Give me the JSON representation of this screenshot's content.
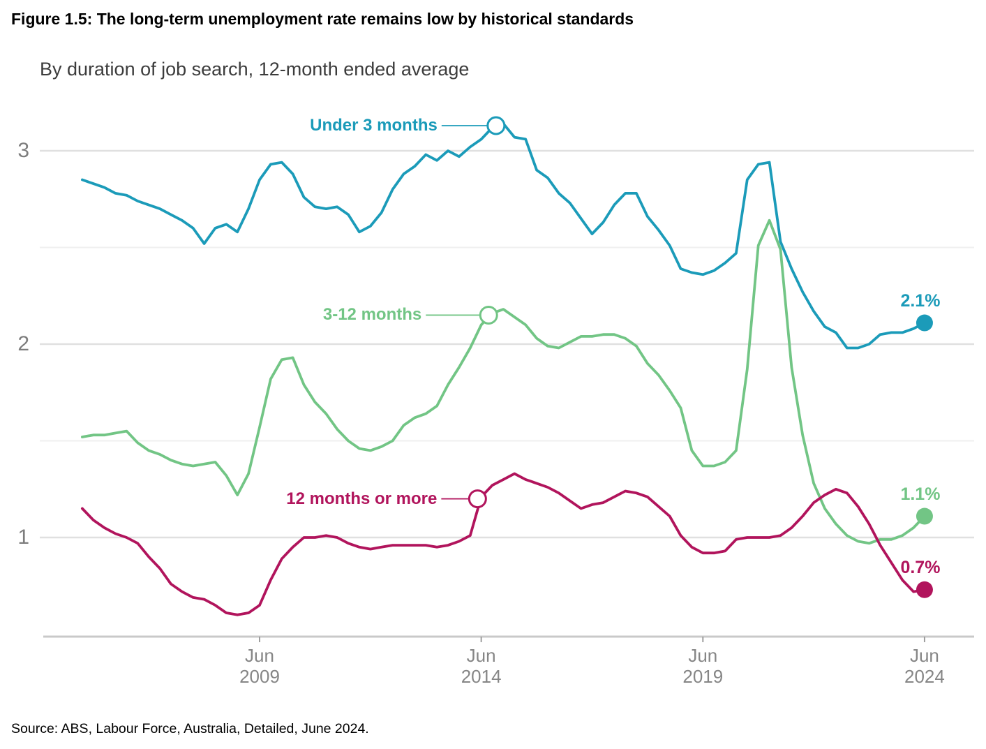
{
  "figure": {
    "title": "Figure 1.5: The long-term unemployment rate remains low by historical standards",
    "subtitle": "By duration of job search, 12-month ended average",
    "source": "Source: ABS, Labour Force, Australia, Detailed, June 2024."
  },
  "chart_data": {
    "type": "line",
    "title": "Figure 1.5: The long-term unemployment rate remains low by historical standards",
    "subtitle": "By duration of job search, 12-month ended average",
    "xlabel": "",
    "ylabel": "",
    "unit": "per cent",
    "grid": "horizontal",
    "legend_position": "inline-callouts",
    "ylim": [
      0.45,
      3.2
    ],
    "y_ticks": [
      {
        "label": "1",
        "value": 1
      },
      {
        "label": "2",
        "value": 2
      },
      {
        "label": "3",
        "value": 3
      }
    ],
    "y_gridlines": [
      1,
      1.5,
      2,
      2.5,
      3
    ],
    "x_ticks": [
      {
        "label_month": "Jun",
        "label_year": "2009",
        "date": "2009-06"
      },
      {
        "label_month": "Jun",
        "label_year": "2014",
        "date": "2014-06"
      },
      {
        "label_month": "Jun",
        "label_year": "2019",
        "date": "2019-06"
      },
      {
        "label_month": "Jun",
        "label_year": "2024",
        "date": "2024-06"
      }
    ],
    "x": [
      "2005-06",
      "2005-09",
      "2005-12",
      "2006-03",
      "2006-06",
      "2006-09",
      "2006-12",
      "2007-03",
      "2007-06",
      "2007-09",
      "2007-12",
      "2008-03",
      "2008-06",
      "2008-09",
      "2008-12",
      "2009-03",
      "2009-06",
      "2009-09",
      "2009-12",
      "2010-03",
      "2010-06",
      "2010-09",
      "2010-12",
      "2011-03",
      "2011-06",
      "2011-09",
      "2011-12",
      "2012-03",
      "2012-06",
      "2012-09",
      "2012-12",
      "2013-03",
      "2013-06",
      "2013-09",
      "2013-12",
      "2014-03",
      "2014-06",
      "2014-09",
      "2014-12",
      "2015-03",
      "2015-06",
      "2015-09",
      "2015-12",
      "2016-03",
      "2016-06",
      "2016-09",
      "2016-12",
      "2017-03",
      "2017-06",
      "2017-09",
      "2017-12",
      "2018-03",
      "2018-06",
      "2018-09",
      "2018-12",
      "2019-03",
      "2019-06",
      "2019-09",
      "2019-12",
      "2020-03",
      "2020-06",
      "2020-09",
      "2020-12",
      "2021-03",
      "2021-06",
      "2021-09",
      "2021-12",
      "2022-03",
      "2022-06",
      "2022-09",
      "2022-12",
      "2023-03",
      "2023-06",
      "2023-09",
      "2023-12",
      "2024-03",
      "2024-06"
    ],
    "series": [
      {
        "name": "Under 3 months",
        "color": "#1b9bb9",
        "end_label": "2.1%",
        "end_value": 2.1,
        "callout": {
          "x": "2014-10",
          "y": 3.13
        },
        "values": [
          2.85,
          2.83,
          2.81,
          2.78,
          2.77,
          2.74,
          2.72,
          2.7,
          2.67,
          2.64,
          2.6,
          2.52,
          2.6,
          2.62,
          2.58,
          2.7,
          2.85,
          2.93,
          2.94,
          2.88,
          2.76,
          2.71,
          2.7,
          2.71,
          2.67,
          2.58,
          2.61,
          2.68,
          2.8,
          2.88,
          2.92,
          2.98,
          2.95,
          3.0,
          2.97,
          3.02,
          3.06,
          3.12,
          3.14,
          3.07,
          3.06,
          2.9,
          2.86,
          2.78,
          2.73,
          2.65,
          2.57,
          2.63,
          2.72,
          2.78,
          2.78,
          2.66,
          2.59,
          2.51,
          2.39,
          2.37,
          2.36,
          2.38,
          2.42,
          2.47,
          2.85,
          2.93,
          2.94,
          2.53,
          2.39,
          2.27,
          2.17,
          2.09,
          2.06,
          1.98,
          1.98,
          2.0,
          2.05,
          2.06,
          2.06,
          2.08,
          2.11
        ]
      },
      {
        "name": "3-12 months",
        "color": "#72c585",
        "end_label": "1.1%",
        "end_value": 1.1,
        "callout": {
          "x": "2014-08",
          "y": 2.15
        },
        "values": [
          1.52,
          1.53,
          1.53,
          1.54,
          1.55,
          1.49,
          1.45,
          1.43,
          1.4,
          1.38,
          1.37,
          1.38,
          1.39,
          1.32,
          1.22,
          1.33,
          1.57,
          1.82,
          1.92,
          1.93,
          1.79,
          1.7,
          1.64,
          1.56,
          1.5,
          1.46,
          1.45,
          1.47,
          1.5,
          1.58,
          1.62,
          1.64,
          1.68,
          1.79,
          1.88,
          1.98,
          2.1,
          2.16,
          2.18,
          2.14,
          2.1,
          2.03,
          1.99,
          1.98,
          2.01,
          2.04,
          2.04,
          2.05,
          2.05,
          2.03,
          1.99,
          1.9,
          1.84,
          1.76,
          1.67,
          1.45,
          1.37,
          1.37,
          1.39,
          1.45,
          1.87,
          2.51,
          2.64,
          2.49,
          1.88,
          1.53,
          1.28,
          1.15,
          1.07,
          1.01,
          0.98,
          0.97,
          0.99,
          0.99,
          1.01,
          1.05,
          1.11
        ]
      },
      {
        "name": "12 months or more",
        "color": "#b1145c",
        "end_label": "0.7%",
        "end_value": 0.7,
        "callout": {
          "x": "2014-05",
          "y": 1.2
        },
        "values": [
          1.15,
          1.09,
          1.05,
          1.02,
          1.0,
          0.97,
          0.9,
          0.84,
          0.76,
          0.72,
          0.69,
          0.68,
          0.65,
          0.61,
          0.6,
          0.61,
          0.65,
          0.78,
          0.89,
          0.95,
          1.0,
          1.0,
          1.01,
          1.0,
          0.97,
          0.95,
          0.94,
          0.95,
          0.96,
          0.96,
          0.96,
          0.96,
          0.95,
          0.96,
          0.98,
          1.01,
          1.21,
          1.27,
          1.3,
          1.33,
          1.3,
          1.28,
          1.26,
          1.23,
          1.19,
          1.15,
          1.17,
          1.18,
          1.21,
          1.24,
          1.23,
          1.21,
          1.16,
          1.11,
          1.01,
          0.95,
          0.92,
          0.92,
          0.93,
          0.99,
          1.0,
          1.0,
          1.0,
          1.01,
          1.05,
          1.11,
          1.18,
          1.22,
          1.25,
          1.23,
          1.16,
          1.07,
          0.96,
          0.87,
          0.78,
          0.72,
          0.73
        ]
      }
    ]
  }
}
